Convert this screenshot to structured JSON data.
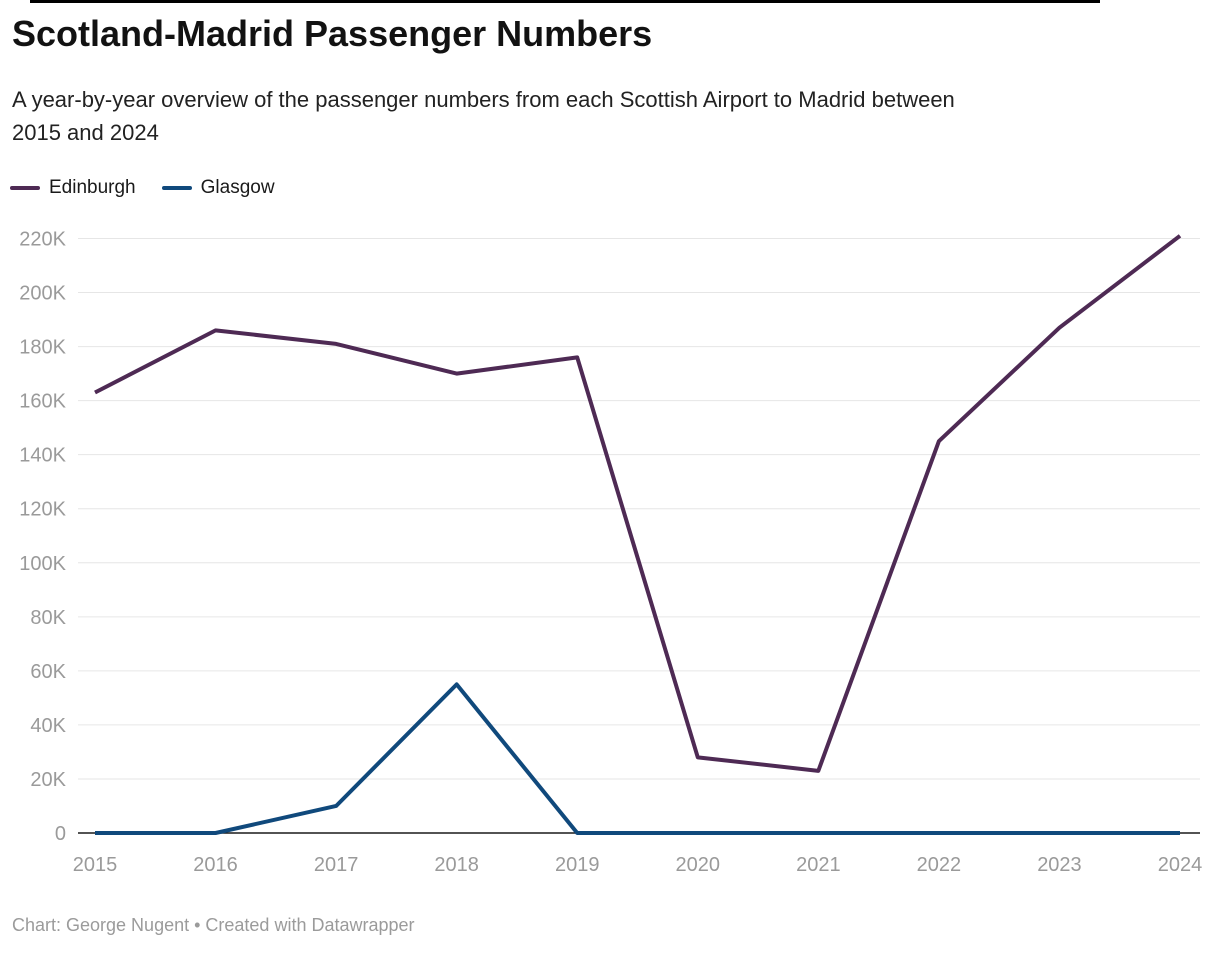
{
  "header": {
    "title": "Scotland-Madrid Passenger Numbers",
    "subtitle": "A year-by-year overview of the passenger numbers from each Scottish Airport to Madrid between 2015 and 2024",
    "subtitle_lines": [
      "A year-by-year overview of the passenger numbers from each Scottish Airport to Madrid between",
      "2015 and 2024"
    ]
  },
  "legend": {
    "items": [
      {
        "label": "Edinburgh",
        "color": "#4e2a54"
      },
      {
        "label": "Glasgow",
        "color": "#10497c"
      }
    ]
  },
  "footer": {
    "credit": "Chart: George Nugent • Created with Datawrapper"
  },
  "chart_data": {
    "type": "line",
    "title": "Scotland-Madrid Passenger Numbers",
    "x": [
      2015,
      2016,
      2017,
      2018,
      2019,
      2020,
      2021,
      2022,
      2023,
      2024
    ],
    "series": [
      {
        "name": "Edinburgh",
        "color": "#4e2a54",
        "values": [
          163000,
          186000,
          181000,
          170000,
          176000,
          28000,
          23000,
          145000,
          187000,
          221000
        ]
      },
      {
        "name": "Glasgow",
        "color": "#10497c",
        "values": [
          0,
          0,
          10000,
          55000,
          0,
          0,
          0,
          0,
          0,
          0
        ]
      }
    ],
    "xlabel": "",
    "ylabel": "",
    "ylim": [
      0,
      220000
    ],
    "ytick_step": 20000,
    "ytick_labels": [
      "0",
      "20K",
      "40K",
      "60K",
      "80K",
      "100K",
      "120K",
      "140K",
      "160K",
      "180K",
      "200K",
      "220K"
    ],
    "grid": "horizontal",
    "legend_position": "top-left",
    "colors": {
      "grid": "#e6e6e6",
      "axis": "#1a1a1a",
      "tick_text": "#9a9a9a"
    }
  }
}
